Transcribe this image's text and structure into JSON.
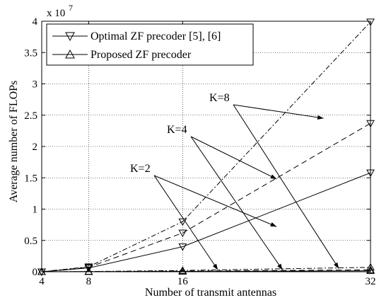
{
  "chart_data": {
    "type": "line",
    "x": [
      4,
      8,
      16,
      32
    ],
    "xlabel": "Number of transmit antennas",
    "ylabel": "Average number of FLOPs",
    "xlim": [
      4,
      32
    ],
    "ylim": [
      0,
      4
    ],
    "y_multiplier": {
      "base": "x 10",
      "exponent": "7"
    },
    "xticks": [
      "4",
      "8",
      "16",
      "32"
    ],
    "yticks": [
      "0",
      "0.5",
      "1",
      "1.5",
      "2",
      "2.5",
      "3",
      "3.5",
      "4"
    ],
    "grid": true,
    "legend_position": "top-left",
    "legend": [
      {
        "label": "Optimal ZF precoder [5], [6]",
        "marker": "triangle-down"
      },
      {
        "label": "Proposed ZF precoder",
        "marker": "triangle-up"
      }
    ],
    "series": [
      {
        "method": "optimal",
        "k": 2,
        "dash": "solid",
        "values": [
          0,
          0.06,
          0.4,
          1.58
        ]
      },
      {
        "method": "optimal",
        "k": 4,
        "dash": "dashed",
        "values": [
          0,
          0.07,
          0.62,
          2.37
        ]
      },
      {
        "method": "optimal",
        "k": 8,
        "dash": "dashdot",
        "values": [
          0,
          0.08,
          0.8,
          3.99
        ]
      },
      {
        "method": "proposed",
        "k": 2,
        "dash": "solid",
        "values": [
          0,
          0.002,
          0.006,
          0.015
        ]
      },
      {
        "method": "proposed",
        "k": 4,
        "dash": "dashed",
        "values": [
          0,
          0.003,
          0.01,
          0.03
        ]
      },
      {
        "method": "proposed",
        "k": 8,
        "dash": "dashdot",
        "values": [
          0,
          0.004,
          0.02,
          0.07
        ]
      }
    ],
    "annotations": [
      {
        "text": "K=2",
        "targets": [
          {
            "x": 24,
            "y": 0.72
          },
          {
            "x": 19,
            "y": 0.03
          }
        ]
      },
      {
        "text": "K=4",
        "targets": [
          {
            "x": 24,
            "y": 1.48
          },
          {
            "x": 24.5,
            "y": 0.03
          }
        ]
      },
      {
        "text": "K=8",
        "targets": [
          {
            "x": 28,
            "y": 2.45
          },
          {
            "x": 29.3,
            "y": 0.05
          }
        ]
      }
    ]
  }
}
